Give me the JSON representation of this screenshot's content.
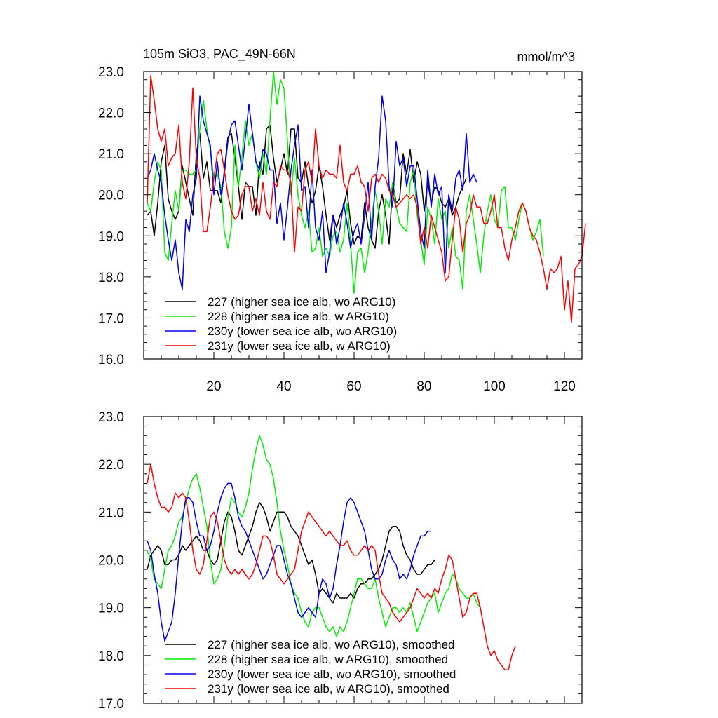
{
  "chart_data": [
    {
      "type": "line",
      "title": "105m SiO3, PAC_49N-66N",
      "units": "mmol/m^3",
      "xlim": [
        0,
        125
      ],
      "ylim": [
        16.0,
        23.0
      ],
      "x_ticks": [
        20,
        40,
        60,
        80,
        100,
        120
      ],
      "x_tick_labels": [
        "20",
        "40",
        "60",
        "80",
        "100",
        "120"
      ],
      "y_ticks": [
        16,
        17,
        18,
        19,
        20,
        21,
        22,
        23
      ],
      "y_tick_labels": [
        "16.0",
        "17.0",
        "18.0",
        "19.0",
        "20.0",
        "21.0",
        "22.0",
        "23.0"
      ],
      "legend_position": "bottom-left",
      "series": [
        {
          "name": "227 (higher sea ice alb, wo ARG10)",
          "color": "#000000",
          "x_start": 1,
          "values": [
            19.5,
            19.6,
            19.0,
            19.8,
            20.8,
            21.2,
            19.9,
            19.6,
            19.4,
            19.6,
            20.7,
            20.3,
            19.9,
            19.5,
            21.0,
            21.5,
            20.4,
            20.8,
            20.1,
            20.1,
            20.1,
            19.8,
            20.6,
            21.4,
            21.5,
            20.9,
            20.2,
            19.4,
            20.3,
            20.2,
            20.2,
            19.5,
            20.8,
            20.5,
            21.6,
            21.7,
            20.9,
            20.3,
            20.6,
            21.0,
            20.5,
            21.6,
            21.6,
            20.4,
            20.3,
            20.8,
            20.2,
            19.8,
            20.1,
            20.7,
            20.2,
            19.5,
            18.9,
            19.5,
            19.2,
            19.5,
            19.7,
            20.1,
            19.3,
            18.8,
            19.0,
            18.9,
            19.8,
            19.2,
            18.9,
            18.7,
            19.6,
            20.0,
            19.5,
            18.8,
            20.3,
            19.8,
            19.9,
            21.0,
            20.5,
            21.1,
            20.3,
            20.8,
            20.5,
            19.6,
            20.3,
            19.8,
            20.2,
            20.1,
            19.8,
            19.7,
            19.9,
            19.5,
            19.7,
            20.0,
            20.2,
            20.4
          ]
        },
        {
          "name": "228 (higher sea ice alb, w ARG10)",
          "color": "#00ee00",
          "x_start": 1,
          "values": [
            19.8,
            19.6,
            20.3,
            20.8,
            20.6,
            18.6,
            18.4,
            19.3,
            20.1,
            19.6,
            20.6,
            20.6,
            20.5,
            20.5,
            20.6,
            21.6,
            22.3,
            21.6,
            21.1,
            20.4,
            20.5,
            20.2,
            19.1,
            18.7,
            19.2,
            21.2,
            20.2,
            20.9,
            21.8,
            21.2,
            21.5,
            20.8,
            20.4,
            21.0,
            20.5,
            21.8,
            23.0,
            22.2,
            22.8,
            22.6,
            21.3,
            20.0,
            20.9,
            20.0,
            19.5,
            19.2,
            19.6,
            18.6,
            18.7,
            19.2,
            18.5,
            18.7,
            18.5,
            19.0,
            19.1,
            18.6,
            18.9,
            19.8,
            18.8,
            17.6,
            18.6,
            18.7,
            18.1,
            18.6,
            19.4,
            20.1,
            19.6,
            18.8,
            19.9,
            19.7,
            20.3,
            19.7,
            19.3,
            19.2,
            19.1,
            20.3,
            20.6,
            19.5,
            18.9,
            18.3,
            19.7,
            19.4,
            18.8,
            19.9,
            19.4,
            19.6,
            18.7,
            19.2,
            18.5,
            18.4,
            17.7,
            19.6,
            20.0,
            19.4,
            18.8,
            18.1,
            19.0,
            19.6,
            20.0,
            19.4,
            19.2,
            20.1,
            20.2,
            19.2,
            19.2,
            18.9,
            19.4,
            19.8,
            19.6,
            19.2,
            18.9,
            19.1,
            19.4,
            18.5
          ]
        },
        {
          "name": "230y (lower sea ice alb, wo ARG10)",
          "color": "#0000f0",
          "x_start": 1,
          "values": [
            20.4,
            20.6,
            21.0,
            20.6,
            20.3,
            19.5,
            18.9,
            18.4,
            18.9,
            18.1,
            17.7,
            19.4,
            19.1,
            20.0,
            20.4,
            22.4,
            21.8,
            21.5,
            21.2,
            20.0,
            20.8,
            20.0,
            20.5,
            21.3,
            21.7,
            21.8,
            21.2,
            20.6,
            21.4,
            22.2,
            21.5,
            20.8,
            20.6,
            21.1,
            21.0,
            20.6,
            20.6,
            19.3,
            19.8,
            18.9,
            19.7,
            20.6,
            21.2,
            21.7,
            20.1,
            20.2,
            19.2,
            20.6,
            19.2,
            18.9,
            19.6,
            18.1,
            18.6,
            19.5,
            18.8,
            19.2,
            19.8,
            19.3,
            18.7,
            19.1,
            19.3,
            18.8,
            19.5,
            20.3,
            18.9,
            20.2,
            20.9,
            22.4,
            21.8,
            20.2,
            19.7,
            21.3,
            20.7,
            20.9,
            20.2,
            20.7,
            20.7,
            19.9,
            19.1,
            18.7,
            20.6,
            19.7,
            20.5,
            20.0,
            20.2,
            18.1,
            20.0,
            19.6,
            20.4,
            20.6,
            20.1,
            21.5,
            20.3,
            20.5,
            20.3
          ]
        },
        {
          "name": "231y (lower sea ice alb, w ARG10)",
          "color": "#ff0000",
          "x_start": 1,
          "values": [
            19.8,
            22.9,
            22.3,
            21.6,
            21.3,
            21.6,
            20.7,
            20.9,
            21.0,
            21.7,
            20.3,
            19.9,
            20.8,
            22.6,
            20.9,
            20.4,
            19.1,
            19.1,
            19.7,
            20.4,
            21.0,
            21.1,
            20.6,
            20.0,
            19.6,
            19.4,
            19.5,
            20.0,
            20.2,
            20.2,
            19.6,
            19.9,
            19.5,
            20.3,
            19.6,
            19.4,
            20.3,
            20.2,
            20.7,
            20.6,
            20.6,
            20.3,
            18.6,
            19.7,
            19.6,
            20.6,
            20.8,
            20.3,
            21.6,
            20.7,
            20.4,
            20.6,
            20.5,
            20.5,
            20.4,
            21.2,
            20.3,
            20.1,
            20.5,
            20.5,
            20.7,
            20.3,
            20.2,
            19.6,
            20.4,
            20.5,
            20.3,
            20.5,
            20.4,
            20.1,
            20.0,
            19.7,
            19.8,
            19.9,
            20.0,
            19.9,
            20.0,
            19.7,
            18.8,
            19.2,
            18.7,
            19.5,
            19.2,
            18.9,
            18.6,
            17.9,
            18.0,
            18.9,
            19.7,
            19.4,
            18.6,
            19.3,
            19.5,
            20.0,
            19.7,
            19.7,
            19.3,
            19.3,
            19.6,
            20.0,
            19.2,
            19.2,
            18.7,
            18.4,
            18.9,
            19.2,
            19.6,
            19.8,
            19.6,
            19.2,
            19.0,
            18.9,
            18.6,
            18.2,
            17.7,
            18.2,
            18.1,
            18.2,
            18.5,
            17.2,
            17.9,
            16.9,
            18.2,
            18.3,
            18.5,
            19.3
          ]
        }
      ]
    },
    {
      "type": "line",
      "xlim": [
        0,
        125
      ],
      "ylim": [
        17.0,
        23.0
      ],
      "y_ticks": [
        17,
        18,
        19,
        20,
        21,
        22,
        23
      ],
      "y_tick_labels": [
        "17.0",
        "18.0",
        "19.0",
        "20.0",
        "21.0",
        "22.0",
        "23.0"
      ],
      "x_ticks": [
        20,
        40,
        60,
        80,
        100,
        120
      ],
      "legend_position": "bottom-left",
      "series": [
        {
          "name": "227 (higher sea ice alb, wo ARG10), smoothed",
          "color": "#000000",
          "x_start": 1,
          "values": [
            19.8,
            20.1,
            20.2,
            20.3,
            20.2,
            19.9,
            19.9,
            20.0,
            20.0,
            20.1,
            20.3,
            20.2,
            20.3,
            20.4,
            20.5,
            20.4,
            20.2,
            20.2,
            20.0,
            19.9,
            20.0,
            20.4,
            20.8,
            21.0,
            20.9,
            20.6,
            20.2,
            20.1,
            20.3,
            20.5,
            20.7,
            21.0,
            21.2,
            21.1,
            20.9,
            20.6,
            20.8,
            21.0,
            21.0,
            21.0,
            20.9,
            20.7,
            20.6,
            20.5,
            20.3,
            20.1,
            19.9,
            20.0,
            19.7,
            19.3,
            19.4,
            19.3,
            19.2,
            19.1,
            19.3,
            19.2,
            19.2,
            19.2,
            19.3,
            19.2,
            19.4,
            19.5,
            19.5,
            19.6,
            19.6,
            19.7,
            19.8,
            20.0,
            20.3,
            20.6,
            20.7,
            20.7,
            20.6,
            20.3,
            20.1,
            20.0,
            19.8,
            19.7,
            19.7,
            19.8,
            19.9,
            19.9,
            20.0
          ]
        },
        {
          "name": "228 (higher sea ice alb, w ARG10), smoothed",
          "color": "#00ee00",
          "x_start": 1,
          "values": [
            20.2,
            20.0,
            19.6,
            19.5,
            19.4,
            19.8,
            20.2,
            20.3,
            20.5,
            20.8,
            20.9,
            21.2,
            21.5,
            21.7,
            21.8,
            21.5,
            21.1,
            20.7,
            20.0,
            19.5,
            19.6,
            19.8,
            20.3,
            20.9,
            21.3,
            21.2,
            21.0,
            20.9,
            21.1,
            21.4,
            21.9,
            22.3,
            22.6,
            22.4,
            22.1,
            22.0,
            21.7,
            21.2,
            20.6,
            20.2,
            19.9,
            19.5,
            19.3,
            19.2,
            18.9,
            18.7,
            18.6,
            18.9,
            19.0,
            19.0,
            18.8,
            18.6,
            18.5,
            18.6,
            18.4,
            18.6,
            18.5,
            18.7,
            19.0,
            19.3,
            19.6,
            19.6,
            19.5,
            19.4,
            19.4,
            19.6,
            19.2,
            18.9,
            18.6,
            18.8,
            19.0,
            19.0,
            18.9,
            19.0,
            18.9,
            19.1,
            18.8,
            18.5,
            18.7,
            18.9,
            19.1,
            19.2,
            19.3,
            18.9,
            19.1,
            19.3,
            19.4,
            19.7,
            19.6,
            19.4,
            19.3,
            19.2,
            19.2,
            19.3,
            19.1,
            19.0
          ]
        },
        {
          "name": "230y (lower sea ice alb, wo ARG10), smoothed",
          "color": "#0000f0",
          "x_start": 1,
          "values": [
            20.4,
            20.2,
            19.7,
            19.3,
            18.7,
            18.3,
            18.5,
            18.7,
            19.3,
            20.1,
            20.8,
            21.3,
            21.3,
            21.2,
            20.8,
            20.5,
            20.5,
            20.2,
            20.3,
            20.6,
            21.0,
            21.3,
            21.5,
            21.6,
            21.6,
            21.3,
            20.9,
            20.7,
            20.6,
            20.4,
            20.2,
            20.0,
            19.8,
            19.6,
            19.7,
            19.9,
            20.1,
            20.3,
            20.3,
            20.0,
            19.7,
            19.5,
            19.2,
            18.9,
            18.8,
            18.9,
            19.0,
            18.9,
            18.8,
            19.3,
            19.6,
            19.5,
            19.2,
            19.4,
            19.9,
            20.3,
            20.8,
            21.2,
            21.3,
            21.2,
            21.0,
            20.8,
            20.6,
            20.2,
            19.8,
            19.6,
            19.6,
            19.7,
            20.0,
            20.2,
            20.0,
            19.9,
            19.6,
            19.7,
            19.6,
            19.8,
            20.1,
            20.3,
            20.5,
            20.5,
            20.6,
            20.6
          ]
        },
        {
          "name": "231y (lower sea ice alb, w ARG10), smoothed",
          "color": "#ff0000",
          "x_start": 1,
          "values": [
            21.6,
            22.0,
            21.6,
            21.3,
            21.1,
            21.1,
            21.0,
            21.1,
            21.4,
            21.3,
            21.4,
            21.3,
            20.8,
            20.2,
            19.8,
            19.7,
            19.9,
            20.4,
            20.9,
            21.0,
            20.8,
            20.4,
            20.0,
            19.8,
            19.7,
            19.8,
            19.7,
            19.8,
            19.7,
            19.6,
            19.7,
            19.9,
            20.2,
            20.5,
            20.5,
            20.4,
            20.1,
            19.7,
            19.6,
            19.5,
            19.6,
            19.7,
            19.8,
            20.2,
            20.6,
            20.8,
            21.0,
            20.9,
            20.8,
            20.7,
            20.6,
            20.5,
            20.6,
            20.5,
            20.4,
            20.3,
            20.3,
            20.4,
            20.2,
            20.1,
            20.1,
            20.2,
            20.3,
            20.2,
            20.3,
            20.2,
            19.7,
            19.3,
            19.2,
            19.1,
            18.9,
            18.8,
            18.7,
            18.8,
            18.9,
            19.0,
            19.2,
            19.4,
            19.3,
            19.2,
            19.3,
            19.2,
            19.4,
            19.3,
            19.6,
            19.8,
            20.1,
            20.0,
            19.6,
            19.2,
            18.8,
            18.9,
            19.2,
            19.3,
            19.3,
            19.0,
            18.6,
            18.2,
            18.0,
            18.1,
            17.9,
            17.8,
            17.7,
            17.7,
            18.0,
            18.2
          ]
        }
      ]
    }
  ]
}
